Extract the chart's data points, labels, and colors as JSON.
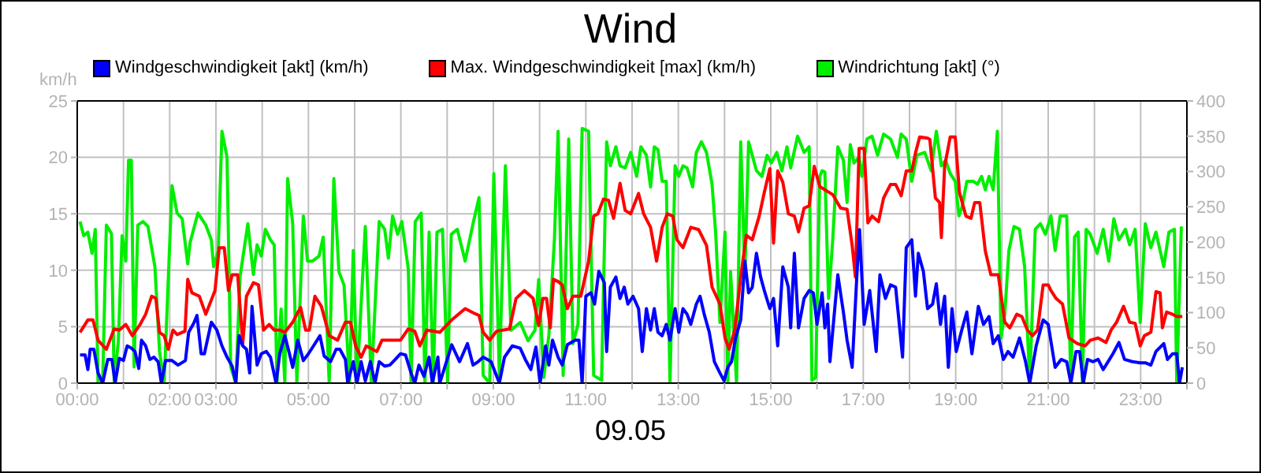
{
  "chart_data": {
    "type": "line",
    "title": "Wind",
    "xlabel": "09.05",
    "ylabel": "km/h",
    "legend": "top left",
    "grid": true,
    "xlim": [
      0,
      24
    ],
    "xticks": [
      {
        "value": 0,
        "label": "00:00"
      },
      {
        "value": 1,
        "label": null
      },
      {
        "value": 2,
        "label": "02:00"
      },
      {
        "value": 3,
        "label": "03:00"
      },
      {
        "value": 4,
        "label": null
      },
      {
        "value": 5,
        "label": "05:00"
      },
      {
        "value": 6,
        "label": null
      },
      {
        "value": 7,
        "label": "07:00"
      },
      {
        "value": 8,
        "label": null
      },
      {
        "value": 9,
        "label": "09:00"
      },
      {
        "value": 10,
        "label": null
      },
      {
        "value": 11,
        "label": "11:00"
      },
      {
        "value": 12,
        "label": null
      },
      {
        "value": 13,
        "label": "13:00"
      },
      {
        "value": 14,
        "label": null
      },
      {
        "value": 15,
        "label": "15:00"
      },
      {
        "value": 16,
        "label": null
      },
      {
        "value": 17,
        "label": "17:00"
      },
      {
        "value": 18,
        "label": null
      },
      {
        "value": 19,
        "label": "19:00"
      },
      {
        "value": 20,
        "label": null
      },
      {
        "value": 21,
        "label": "21:00"
      },
      {
        "value": 22,
        "label": null
      },
      {
        "value": 23,
        "label": "23:00"
      },
      {
        "value": 24,
        "label": null
      }
    ],
    "ylim": [
      0,
      25
    ],
    "yticks": [
      0,
      5,
      10,
      15,
      20,
      25
    ],
    "y2lim": [
      0,
      400
    ],
    "y2ticks": [
      0,
      50,
      100,
      150,
      200,
      250,
      300,
      350,
      400
    ],
    "series": [
      {
        "name": "Windgeschwindigkeit [akt] (km/h)",
        "color": "#0000ff",
        "x": [
          0.06,
          0.17,
          0.23,
          0.28,
          0.36,
          0.45,
          0.55,
          0.66,
          0.75,
          0.82,
          0.91,
          1.0,
          1.08,
          1.17,
          1.25,
          1.33,
          1.39,
          1.48,
          1.57,
          1.66,
          1.75,
          1.82,
          1.91,
          2.05,
          2.18,
          2.34,
          2.41,
          2.52,
          2.59,
          2.68,
          2.75,
          2.9,
          3.02,
          3.13,
          3.24,
          3.35,
          3.43,
          3.5,
          3.58,
          3.66,
          3.73,
          3.78,
          3.89,
          3.98,
          4.09,
          4.18,
          4.3,
          4.38,
          4.49,
          4.59,
          4.66,
          4.77,
          4.89,
          5.0,
          5.11,
          5.25,
          5.34,
          5.48,
          5.6,
          5.68,
          5.8,
          5.85,
          5.97,
          6.05,
          6.14,
          6.23,
          6.34,
          6.44,
          6.53,
          6.65,
          6.76,
          6.88,
          6.99,
          7.1,
          7.22,
          7.3,
          7.39,
          7.5,
          7.61,
          7.68,
          7.8,
          7.84,
          8.1,
          8.27,
          8.44,
          8.56,
          8.67,
          8.78,
          8.95,
          9.13,
          9.24,
          9.41,
          9.58,
          9.69,
          9.81,
          9.92,
          10.01,
          10.13,
          10.2,
          10.28,
          10.4,
          10.49,
          10.6,
          10.77,
          10.85,
          10.92,
          11.0,
          11.11,
          11.19,
          11.28,
          11.4,
          11.45,
          11.53,
          11.65,
          11.74,
          11.83,
          11.91,
          12.02,
          12.14,
          12.22,
          12.31,
          12.4,
          12.48,
          12.56,
          12.65,
          12.74,
          12.82,
          12.93,
          13.01,
          13.1,
          13.19,
          13.27,
          13.39,
          13.47,
          13.56,
          13.67,
          13.78,
          13.9,
          13.99,
          14.07,
          14.15,
          14.24,
          14.35,
          14.44,
          14.52,
          14.6,
          14.69,
          14.78,
          14.86,
          14.98,
          15.06,
          15.15,
          15.26,
          15.38,
          15.43,
          15.51,
          15.6,
          15.72,
          15.83,
          15.92,
          16.0,
          16.11,
          16.17,
          16.23,
          16.28,
          16.45,
          16.57,
          16.65,
          16.76,
          16.86,
          16.92,
          17.02,
          17.14,
          17.28,
          17.36,
          17.48,
          17.59,
          17.7,
          17.85,
          17.93,
          18.05,
          18.13,
          18.19,
          18.3,
          18.39,
          18.5,
          18.58,
          18.67,
          18.76,
          18.84,
          18.92,
          19.01,
          19.13,
          19.24,
          19.35,
          19.49,
          19.6,
          19.72,
          19.81,
          19.92,
          20.03,
          20.13,
          20.24,
          20.38,
          20.51,
          20.6,
          20.74,
          20.89,
          21.0,
          21.15,
          21.28,
          21.4,
          21.49,
          21.6,
          21.68,
          21.76,
          21.85,
          21.97,
          22.08,
          22.19,
          22.31,
          22.4,
          22.53,
          22.65,
          22.82,
          22.99,
          23.1,
          23.22,
          23.33,
          23.5,
          23.58,
          23.69,
          23.78,
          23.84,
          23.9
        ],
        "values": [
          2.5,
          2.5,
          1.2,
          3.0,
          3.0,
          0.9,
          0,
          2.1,
          2.1,
          0,
          2.2,
          2.0,
          3.3,
          3.1,
          2.8,
          1.3,
          3.8,
          3.3,
          2.1,
          2.3,
          1.9,
          0,
          2.0,
          2.0,
          1.6,
          2.0,
          4.5,
          5.3,
          6.0,
          2.6,
          2.6,
          5.4,
          4.7,
          3.3,
          2.3,
          1.5,
          0,
          4.2,
          3.3,
          3.0,
          0.9,
          6.8,
          1.6,
          2.6,
          2.8,
          2.3,
          0,
          2.6,
          4.2,
          2.6,
          1.4,
          3.8,
          2.0,
          2.6,
          3.3,
          4.2,
          2.4,
          1.9,
          3.0,
          3.0,
          2.1,
          0,
          1.9,
          0,
          1.9,
          0.2,
          1.9,
          0,
          1.9,
          1.5,
          1.6,
          2.1,
          2.6,
          2.5,
          0.9,
          0,
          1.6,
          0.6,
          2.3,
          0,
          2.3,
          0,
          3.4,
          1.9,
          3.5,
          1.6,
          1.9,
          2.3,
          1.9,
          0,
          2.3,
          3.3,
          3.1,
          2.1,
          1.2,
          3.2,
          0,
          3.3,
          1.6,
          3.8,
          2.3,
          1.6,
          3.4,
          3.8,
          3.8,
          0,
          7.7,
          8.0,
          7.0,
          9.9,
          8.9,
          2.8,
          8.5,
          9.4,
          7.5,
          8.5,
          7.0,
          7.7,
          6.6,
          2.8,
          6.6,
          4.7,
          6.6,
          4.5,
          4.2,
          5.2,
          3.8,
          6.6,
          4.5,
          6.6,
          6.1,
          5.2,
          7.0,
          7.7,
          6.1,
          4.5,
          1.9,
          0.9,
          0.2,
          1.4,
          1.9,
          4.0,
          5.6,
          10.8,
          8.0,
          8.5,
          11.5,
          9.4,
          8.2,
          6.6,
          7.5,
          3.3,
          10.3,
          8.5,
          4.9,
          11.5,
          4.9,
          7.5,
          8.2,
          8.0,
          5.2,
          8.0,
          4.9,
          7.0,
          1.9,
          9.6,
          6.3,
          3.8,
          1.4,
          9.4,
          13.6,
          5.2,
          8.2,
          2.8,
          9.6,
          7.5,
          8.7,
          8.5,
          2.3,
          12.0,
          12.7,
          7.7,
          11.5,
          9.9,
          6.6,
          7.0,
          8.8,
          5.2,
          7.7,
          1.4,
          6.6,
          2.8,
          4.7,
          6.3,
          2.6,
          6.8,
          5.2,
          5.9,
          3.5,
          4.2,
          2.1,
          2.8,
          2.3,
          4.0,
          1.9,
          0,
          3.3,
          5.6,
          5.2,
          1.4,
          2.1,
          1.9,
          0,
          2.8,
          2.8,
          0,
          2.1,
          1.9,
          2.1,
          1.2,
          2.0,
          2.6,
          3.6,
          2.1,
          1.9,
          1.8,
          1.8,
          1.6,
          2.8,
          3.5,
          2.1,
          2.6,
          2.6,
          0,
          1.4
        ]
      },
      {
        "name": "Max. Windgeschwindigkeit [max] (km/h)",
        "color": "#ff0000",
        "x": [
          0.06,
          0.23,
          0.34,
          0.45,
          0.63,
          0.8,
          0.91,
          1.05,
          1.19,
          1.36,
          1.48,
          1.61,
          1.7,
          1.78,
          1.88,
          1.97,
          2.07,
          2.16,
          2.33,
          2.39,
          2.48,
          2.64,
          2.78,
          2.98,
          3.07,
          3.18,
          3.27,
          3.35,
          3.47,
          3.58,
          3.66,
          3.81,
          3.92,
          4.03,
          4.15,
          4.26,
          4.38,
          4.49,
          4.66,
          4.83,
          4.94,
          5.02,
          5.14,
          5.28,
          5.45,
          5.63,
          5.8,
          5.91,
          6.02,
          6.14,
          6.25,
          6.48,
          6.59,
          6.82,
          6.99,
          7.16,
          7.3,
          7.41,
          7.56,
          7.84,
          8.1,
          8.39,
          8.58,
          8.69,
          8.78,
          8.92,
          9.07,
          9.35,
          9.49,
          9.67,
          9.86,
          9.98,
          10.07,
          10.15,
          10.23,
          10.3,
          10.4,
          10.49,
          10.6,
          10.72,
          10.89,
          11.06,
          11.17,
          11.26,
          11.38,
          11.49,
          11.6,
          11.74,
          11.85,
          11.97,
          12.14,
          12.25,
          12.4,
          12.53,
          12.65,
          12.76,
          12.88,
          12.97,
          13.1,
          13.27,
          13.44,
          13.61,
          13.73,
          13.9,
          14.01,
          14.1,
          14.22,
          14.35,
          14.47,
          14.6,
          14.75,
          14.86,
          14.98,
          15.06,
          15.15,
          15.26,
          15.38,
          15.51,
          15.6,
          15.72,
          15.83,
          15.94,
          16.06,
          16.34,
          16.51,
          16.65,
          16.76,
          16.83,
          16.91,
          17.02,
          17.1,
          17.19,
          17.33,
          17.44,
          17.59,
          17.7,
          17.82,
          17.93,
          18.05,
          18.13,
          18.22,
          18.39,
          18.44,
          18.56,
          18.65,
          18.69,
          18.76,
          18.88,
          18.99,
          19.08,
          19.22,
          19.33,
          19.41,
          19.52,
          19.64,
          19.76,
          19.92,
          20.06,
          20.17,
          20.32,
          20.43,
          20.55,
          20.66,
          20.77,
          20.89,
          21.0,
          21.06,
          21.17,
          21.31,
          21.45,
          21.63,
          21.8,
          21.91,
          22.08,
          22.25,
          22.36,
          22.48,
          22.63,
          22.76,
          22.88,
          22.99,
          23.08,
          23.22,
          23.33,
          23.42,
          23.47,
          23.56,
          23.69,
          23.78,
          23.9
        ],
        "values": [
          4.5,
          5.6,
          5.6,
          3.8,
          3.0,
          4.8,
          4.7,
          5.2,
          4.2,
          5.2,
          6.1,
          7.7,
          7.5,
          4.5,
          4.2,
          3.0,
          4.7,
          4.3,
          4.6,
          9.2,
          8.0,
          7.7,
          6.1,
          8.2,
          12.0,
          12.0,
          8.2,
          9.6,
          9.6,
          3.5,
          7.7,
          8.9,
          8.7,
          4.7,
          5.2,
          4.7,
          4.7,
          4.5,
          5.4,
          6.7,
          4.7,
          4.7,
          7.7,
          6.8,
          4.2,
          3.8,
          5.4,
          5.4,
          3.3,
          2.3,
          3.3,
          2.8,
          3.8,
          3.8,
          3.8,
          4.8,
          4.6,
          3.3,
          4.7,
          4.5,
          5.6,
          6.6,
          6.2,
          6.0,
          4.5,
          3.8,
          4.6,
          4.8,
          7.5,
          8.2,
          7.5,
          5.1,
          7.5,
          7.5,
          4.9,
          9.2,
          9.0,
          8.7,
          6.6,
          7.7,
          7.7,
          10.8,
          14.8,
          15.0,
          16.3,
          16.2,
          14.6,
          17.7,
          15.3,
          15.0,
          16.8,
          15.0,
          13.8,
          10.8,
          13.8,
          15.0,
          14.8,
          12.7,
          12.0,
          13.8,
          13.6,
          12.2,
          8.5,
          7.0,
          4.0,
          3.0,
          4.7,
          9.4,
          13.1,
          12.7,
          14.8,
          16.9,
          19.0,
          12.4,
          18.8,
          17.8,
          15.0,
          14.8,
          13.4,
          15.5,
          15.7,
          19.2,
          17.4,
          16.7,
          15.5,
          15.4,
          12.2,
          9.4,
          20.8,
          20.8,
          14.2,
          14.8,
          14.3,
          16.4,
          17.6,
          17.6,
          16.6,
          18.8,
          18.8,
          20.4,
          21.8,
          21.7,
          21.6,
          16.4,
          16.0,
          12.9,
          19.2,
          21.8,
          21.8,
          16.9,
          14.8,
          14.6,
          16.0,
          16.0,
          11.7,
          9.6,
          9.6,
          5.4,
          4.9,
          6.1,
          5.9,
          4.7,
          4.2,
          4.7,
          8.7,
          8.7,
          8.2,
          7.5,
          7.0,
          4.0,
          3.5,
          3.3,
          3.8,
          4.0,
          3.6,
          4.7,
          5.4,
          6.8,
          5.4,
          5.3,
          3.3,
          4.2,
          4.5,
          8.1,
          8.0,
          4.9,
          6.3,
          6.1,
          5.9,
          5.9
        ]
      },
      {
        "name": "Windrichtung [akt] (°)",
        "color": "#00ee00",
        "axis": "y2",
        "x": [
          0.06,
          0.14,
          0.23,
          0.32,
          0.39,
          0.45,
          0.55,
          0.63,
          0.74,
          0.8,
          0.89,
          0.97,
          1.05,
          1.11,
          1.17,
          1.23,
          1.31,
          1.42,
          1.53,
          1.68,
          1.78,
          1.88,
          1.93,
          2.05,
          2.16,
          2.27,
          2.39,
          2.44,
          2.61,
          2.78,
          2.9,
          2.95,
          3.05,
          3.13,
          3.24,
          3.32,
          3.43,
          3.52,
          3.69,
          3.81,
          3.89,
          3.98,
          4.07,
          4.18,
          4.26,
          4.32,
          4.41,
          4.49,
          4.55,
          4.66,
          4.75,
          4.89,
          4.98,
          5.09,
          5.23,
          5.32,
          5.45,
          5.55,
          5.66,
          5.77,
          5.89,
          5.97,
          6.05,
          6.23,
          6.36,
          6.53,
          6.65,
          6.73,
          6.82,
          6.93,
          7.02,
          7.16,
          7.22,
          7.31,
          7.44,
          7.52,
          7.61,
          7.7,
          7.78,
          7.9,
          8.01,
          8.09,
          8.22,
          8.39,
          8.56,
          8.69,
          8.78,
          8.92,
          9.01,
          9.13,
          9.26,
          9.38,
          9.58,
          9.75,
          9.9,
          9.98,
          10.09,
          10.2,
          10.32,
          10.4,
          10.51,
          10.63,
          10.72,
          10.83,
          10.92,
          11.06,
          11.17,
          11.34,
          11.45,
          11.53,
          11.65,
          11.74,
          11.85,
          11.97,
          12.1,
          12.19,
          12.31,
          12.4,
          12.48,
          12.56,
          12.65,
          12.74,
          12.82,
          12.93,
          13.01,
          13.1,
          13.19,
          13.31,
          13.39,
          13.5,
          13.61,
          13.73,
          13.81,
          13.9,
          14.01,
          14.07,
          14.13,
          14.26,
          14.35,
          14.44,
          14.52,
          14.6,
          14.69,
          14.81,
          14.92,
          15.01,
          15.13,
          15.24,
          15.35,
          15.43,
          15.58,
          15.72,
          15.83,
          15.89,
          15.97,
          16.06,
          16.11,
          16.17,
          16.25,
          16.34,
          16.45,
          16.57,
          16.65,
          16.72,
          16.8,
          16.91,
          16.97,
          17.08,
          17.19,
          17.31,
          17.44,
          17.59,
          17.74,
          17.82,
          17.93,
          18.05,
          18.16,
          18.33,
          18.47,
          18.58,
          18.69,
          18.78,
          18.88,
          18.99,
          19.07,
          19.13,
          19.24,
          19.38,
          19.47,
          19.56,
          19.64,
          19.72,
          19.81,
          19.9,
          19.98,
          20.06,
          20.15,
          20.26,
          20.38,
          20.49,
          20.6,
          20.72,
          20.83,
          20.94,
          21.06,
          21.15,
          21.26,
          21.4,
          21.49,
          21.57,
          21.65,
          21.74,
          21.82,
          21.91,
          22.06,
          22.19,
          22.31,
          22.42,
          22.53,
          22.67,
          22.76,
          22.88,
          22.99,
          23.1,
          23.22,
          23.33,
          23.5,
          23.61,
          23.73,
          23.78,
          23.88
        ],
        "values": [
          229,
          209,
          214,
          184,
          218,
          0,
          0,
          224,
          212,
          0,
          60,
          209,
          173,
          316,
          316,
          23,
          224,
          229,
          222,
          165,
          45,
          0,
          83,
          280,
          241,
          233,
          169,
          199,
          241,
          224,
          203,
          165,
          188,
          357,
          320,
          23,
          0,
          150,
          226,
          154,
          196,
          180,
          218,
          203,
          196,
          0,
          105,
          0,
          290,
          226,
          0,
          237,
          173,
          173,
          180,
          207,
          0,
          290,
          158,
          139,
          0,
          188,
          0,
          222,
          0,
          229,
          218,
          177,
          237,
          211,
          229,
          162,
          0,
          229,
          241,
          0,
          214,
          0,
          214,
          218,
          0,
          211,
          218,
          173,
          226,
          263,
          11,
          0,
          297,
          11,
          308,
          75,
          86,
          60,
          75,
          147,
          8,
          68,
          203,
          357,
          11,
          346,
          56,
          83,
          361,
          357,
          11,
          4,
          342,
          308,
          335,
          308,
          305,
          327,
          293,
          335,
          323,
          278,
          335,
          331,
          286,
          286,
          0,
          308,
          293,
          308,
          305,
          278,
          327,
          342,
          327,
          282,
          211,
          86,
          214,
          0,
          158,
          0,
          342,
          154,
          342,
          323,
          301,
          293,
          323,
          312,
          327,
          301,
          335,
          305,
          350,
          327,
          335,
          4,
          8,
          293,
          301,
          299,
          120,
          203,
          335,
          316,
          256,
          338,
          312,
          320,
          293,
          346,
          350,
          323,
          353,
          346,
          320,
          353,
          346,
          286,
          323,
          327,
          301,
          357,
          308,
          316,
          297,
          286,
          237,
          248,
          286,
          286,
          282,
          293,
          274,
          293,
          274,
          357,
          64,
          98,
          188,
          222,
          218,
          165,
          0,
          218,
          226,
          211,
          237,
          188,
          237,
          237,
          0,
          207,
          214,
          0,
          218,
          211,
          184,
          218,
          173,
          233,
          203,
          218,
          196,
          218,
          86,
          226,
          192,
          214,
          165,
          214,
          218,
          0,
          222
        ]
      }
    ]
  }
}
